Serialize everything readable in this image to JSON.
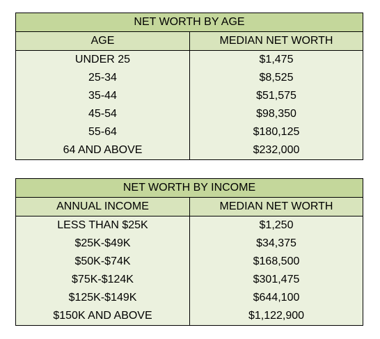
{
  "tables": [
    {
      "title": "NET WORTH BY AGE",
      "headers": [
        "AGE",
        "MEDIAN NET WORTH"
      ],
      "rows": [
        [
          "UNDER 25",
          "$1,475"
        ],
        [
          "25-34",
          "$8,525"
        ],
        [
          "35-44",
          "$51,575"
        ],
        [
          "45-54",
          "$98,350"
        ],
        [
          "55-64",
          "$180,125"
        ],
        [
          "64 AND ABOVE",
          "$232,000"
        ]
      ]
    },
    {
      "title": "NET WORTH BY INCOME",
      "headers": [
        "ANNUAL INCOME",
        "MEDIAN NET WORTH"
      ],
      "rows": [
        [
          "LESS THAN $25K",
          "$1,250"
        ],
        [
          "$25K-$49K",
          "$34,375"
        ],
        [
          "$50K-$74K",
          "$168,500"
        ],
        [
          "$75K-$124K",
          "$301,475"
        ],
        [
          "$125K-$149K",
          "$644,100"
        ],
        [
          "$150K AND ABOVE",
          "$1,122,900"
        ]
      ]
    }
  ],
  "colors": {
    "title_fill": "#c4d79b",
    "header_fill": "#d8e4bc",
    "body_fill": "#ebf1de",
    "border": "#000000"
  }
}
